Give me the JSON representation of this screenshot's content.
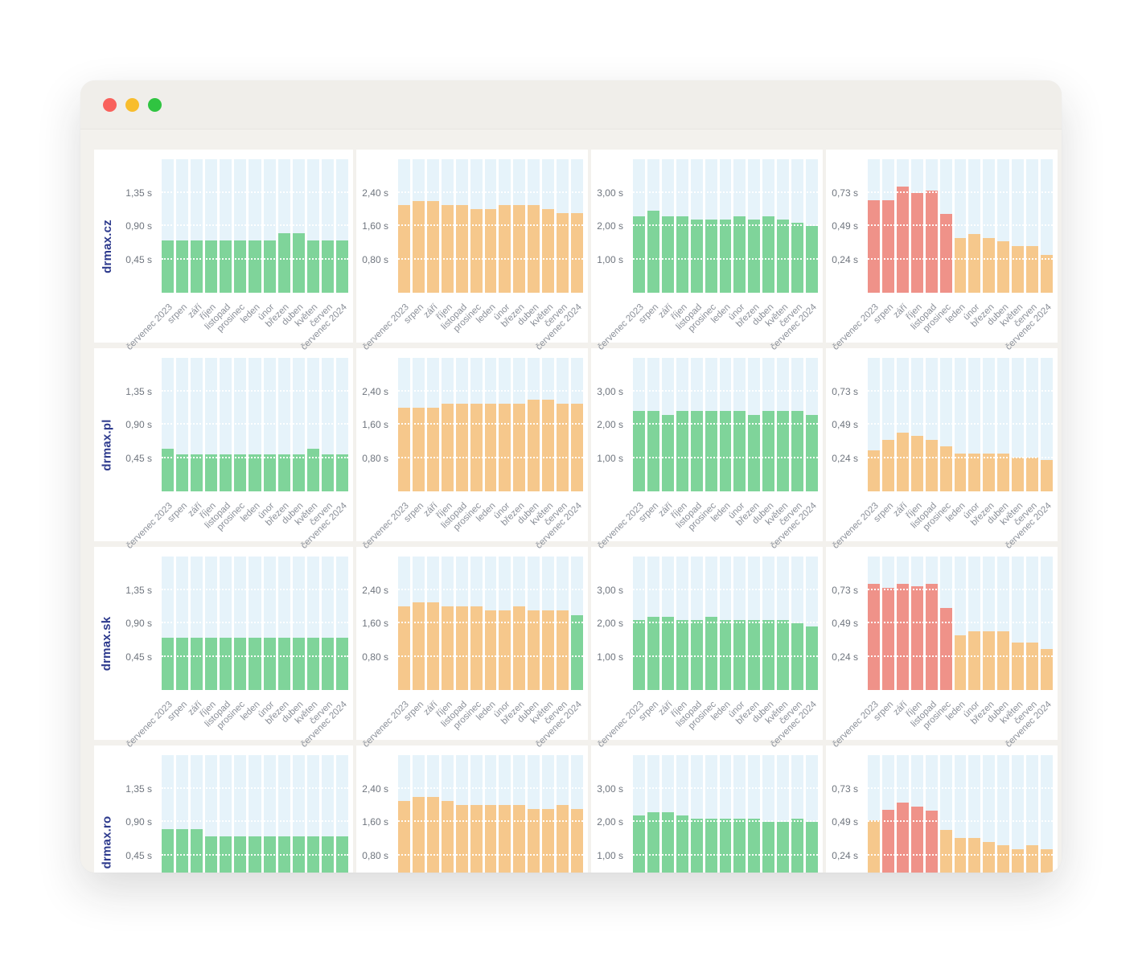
{
  "window": {
    "traffic_lights": [
      {
        "name": "close-button",
        "color": "#f9615c"
      },
      {
        "name": "minimize-button",
        "color": "#f8bd2d"
      },
      {
        "name": "maximize-button",
        "color": "#30c441"
      }
    ]
  },
  "palette": {
    "good": "#7fd49a",
    "warn": "#f6c88c",
    "poor": "#ef9289",
    "track": "#e6f3fa",
    "row_label": "#2d3a8d",
    "tick_label": "#6f757e",
    "x_label": "#8a8f98"
  },
  "sites": [
    "drmax.cz",
    "drmax.pl",
    "drmax.sk",
    "drmax.ro"
  ],
  "months": [
    "červenec 2023",
    "srpen",
    "září",
    "říjen",
    "listopad",
    "prosinec",
    "leden",
    "únor",
    "březen",
    "duben",
    "květen",
    "červen",
    "červenec 2024"
  ],
  "chart_data": [
    {
      "type": "bar",
      "site": "drmax.cz",
      "panel": 1,
      "ylim": [
        0,
        1.8
      ],
      "ticks": [
        {
          "v": 1.35,
          "label": "1,35 s"
        },
        {
          "v": 0.9,
          "label": "0,90 s"
        },
        {
          "v": 0.45,
          "label": "0,45 s"
        }
      ],
      "values": [
        0.7,
        0.7,
        0.7,
        0.7,
        0.7,
        0.7,
        0.7,
        0.7,
        0.8,
        0.8,
        0.7,
        0.7,
        0.7
      ],
      "status": "good"
    },
    {
      "type": "bar",
      "site": "drmax.cz",
      "panel": 2,
      "ylim": [
        0,
        3.2
      ],
      "ticks": [
        {
          "v": 2.4,
          "label": "2,40 s"
        },
        {
          "v": 1.6,
          "label": "1,60 s"
        },
        {
          "v": 0.8,
          "label": "0,80 s"
        }
      ],
      "values": [
        2.1,
        2.2,
        2.2,
        2.1,
        2.1,
        2.0,
        2.0,
        2.1,
        2.1,
        2.1,
        2.0,
        1.9,
        1.9
      ],
      "status": "warn"
    },
    {
      "type": "bar",
      "site": "drmax.cz",
      "panel": 3,
      "ylim": [
        0,
        4.0
      ],
      "ticks": [
        {
          "v": 3.0,
          "label": "3,00 s"
        },
        {
          "v": 2.0,
          "label": "2,00 s"
        },
        {
          "v": 1.0,
          "label": "1,00 s"
        }
      ],
      "values": [
        2.3,
        2.45,
        2.3,
        2.3,
        2.2,
        2.2,
        2.2,
        2.3,
        2.2,
        2.3,
        2.2,
        2.1,
        2.0
      ],
      "status": "good"
    },
    {
      "type": "bar",
      "site": "drmax.cz",
      "panel": 4,
      "ylim": [
        0,
        0.98
      ],
      "ticks": [
        {
          "v": 0.73,
          "label": "0,73 s"
        },
        {
          "v": 0.49,
          "label": "0,49 s"
        },
        {
          "v": 0.24,
          "label": "0,24 s"
        }
      ],
      "values": [
        0.68,
        0.68,
        0.78,
        0.73,
        0.75,
        0.58,
        0.4,
        0.43,
        0.4,
        0.38,
        0.34,
        0.34,
        0.28
      ],
      "statuses": [
        "poor",
        "poor",
        "poor",
        "poor",
        "poor",
        "poor",
        "warn",
        "warn",
        "warn",
        "warn",
        "warn",
        "warn",
        "warn"
      ]
    },
    {
      "type": "bar",
      "site": "drmax.pl",
      "panel": 1,
      "ylim": [
        0,
        1.8
      ],
      "ticks": [
        {
          "v": 1.35,
          "label": "1,35 s"
        },
        {
          "v": 0.9,
          "label": "0,90 s"
        },
        {
          "v": 0.45,
          "label": "0,45 s"
        }
      ],
      "values": [
        0.57,
        0.5,
        0.5,
        0.5,
        0.5,
        0.5,
        0.5,
        0.5,
        0.5,
        0.5,
        0.57,
        0.5,
        0.5
      ],
      "status": "good"
    },
    {
      "type": "bar",
      "site": "drmax.pl",
      "panel": 2,
      "ylim": [
        0,
        3.2
      ],
      "ticks": [
        {
          "v": 2.4,
          "label": "2,40 s"
        },
        {
          "v": 1.6,
          "label": "1,60 s"
        },
        {
          "v": 0.8,
          "label": "0,80 s"
        }
      ],
      "values": [
        2.0,
        2.0,
        2.0,
        2.1,
        2.1,
        2.1,
        2.1,
        2.1,
        2.1,
        2.2,
        2.2,
        2.1,
        2.1
      ],
      "status": "warn"
    },
    {
      "type": "bar",
      "site": "drmax.pl",
      "panel": 3,
      "ylim": [
        0,
        4.0
      ],
      "ticks": [
        {
          "v": 3.0,
          "label": "3,00 s"
        },
        {
          "v": 2.0,
          "label": "2,00 s"
        },
        {
          "v": 1.0,
          "label": "1,00 s"
        }
      ],
      "values": [
        2.4,
        2.4,
        2.3,
        2.4,
        2.4,
        2.4,
        2.4,
        2.4,
        2.3,
        2.4,
        2.4,
        2.4,
        2.3
      ],
      "status": "good"
    },
    {
      "type": "bar",
      "site": "drmax.pl",
      "panel": 4,
      "ylim": [
        0,
        0.98
      ],
      "ticks": [
        {
          "v": 0.73,
          "label": "0,73 s"
        },
        {
          "v": 0.49,
          "label": "0,49 s"
        },
        {
          "v": 0.24,
          "label": "0,24 s"
        }
      ],
      "values": [
        0.3,
        0.38,
        0.43,
        0.41,
        0.38,
        0.33,
        0.28,
        0.28,
        0.28,
        0.28,
        0.25,
        0.25,
        0.23
      ],
      "status": "warn"
    },
    {
      "type": "bar",
      "site": "drmax.sk",
      "panel": 1,
      "ylim": [
        0,
        1.8
      ],
      "ticks": [
        {
          "v": 1.35,
          "label": "1,35 s"
        },
        {
          "v": 0.9,
          "label": "0,90 s"
        },
        {
          "v": 0.45,
          "label": "0,45 s"
        }
      ],
      "values": [
        0.7,
        0.7,
        0.7,
        0.7,
        0.7,
        0.7,
        0.7,
        0.7,
        0.7,
        0.7,
        0.7,
        0.7,
        0.7
      ],
      "status": "good"
    },
    {
      "type": "bar",
      "site": "drmax.sk",
      "panel": 2,
      "ylim": [
        0,
        3.2
      ],
      "ticks": [
        {
          "v": 2.4,
          "label": "2,40 s"
        },
        {
          "v": 1.6,
          "label": "1,60 s"
        },
        {
          "v": 0.8,
          "label": "0,80 s"
        }
      ],
      "values": [
        2.0,
        2.1,
        2.1,
        2.0,
        2.0,
        2.0,
        1.9,
        1.9,
        2.0,
        1.9,
        1.9,
        1.9,
        1.8
      ],
      "statuses": [
        "warn",
        "warn",
        "warn",
        "warn",
        "warn",
        "warn",
        "warn",
        "warn",
        "warn",
        "warn",
        "warn",
        "warn",
        "good"
      ]
    },
    {
      "type": "bar",
      "site": "drmax.sk",
      "panel": 3,
      "ylim": [
        0,
        4.0
      ],
      "ticks": [
        {
          "v": 3.0,
          "label": "3,00 s"
        },
        {
          "v": 2.0,
          "label": "2,00 s"
        },
        {
          "v": 1.0,
          "label": "1,00 s"
        }
      ],
      "values": [
        2.1,
        2.2,
        2.2,
        2.1,
        2.1,
        2.2,
        2.1,
        2.1,
        2.1,
        2.1,
        2.1,
        2.0,
        1.9
      ],
      "status": "good"
    },
    {
      "type": "bar",
      "site": "drmax.sk",
      "panel": 4,
      "ylim": [
        0,
        0.98
      ],
      "ticks": [
        {
          "v": 0.73,
          "label": "0,73 s"
        },
        {
          "v": 0.49,
          "label": "0,49 s"
        },
        {
          "v": 0.24,
          "label": "0,24 s"
        }
      ],
      "values": [
        0.78,
        0.75,
        0.78,
        0.76,
        0.78,
        0.6,
        0.4,
        0.43,
        0.43,
        0.43,
        0.35,
        0.35,
        0.3
      ],
      "statuses": [
        "poor",
        "poor",
        "poor",
        "poor",
        "poor",
        "poor",
        "warn",
        "warn",
        "warn",
        "warn",
        "warn",
        "warn",
        "warn"
      ]
    },
    {
      "type": "bar",
      "site": "drmax.ro",
      "panel": 1,
      "ylim": [
        0,
        1.8
      ],
      "ticks": [
        {
          "v": 1.35,
          "label": "1,35 s"
        },
        {
          "v": 0.9,
          "label": "0,90 s"
        },
        {
          "v": 0.45,
          "label": "0,45 s"
        }
      ],
      "values": [
        0.8,
        0.8,
        0.8,
        0.7,
        0.7,
        0.7,
        0.7,
        0.7,
        0.7,
        0.7,
        0.7,
        0.7,
        0.7
      ],
      "status": "good"
    },
    {
      "type": "bar",
      "site": "drmax.ro",
      "panel": 2,
      "ylim": [
        0,
        3.2
      ],
      "ticks": [
        {
          "v": 2.4,
          "label": "2,40 s"
        },
        {
          "v": 1.6,
          "label": "1,60 s"
        },
        {
          "v": 0.8,
          "label": "0,80 s"
        }
      ],
      "values": [
        2.1,
        2.2,
        2.2,
        2.1,
        2.0,
        2.0,
        2.0,
        2.0,
        2.0,
        1.9,
        1.9,
        2.0,
        1.9
      ],
      "status": "warn"
    },
    {
      "type": "bar",
      "site": "drmax.ro",
      "panel": 3,
      "ylim": [
        0,
        4.0
      ],
      "ticks": [
        {
          "v": 3.0,
          "label": "3,00 s"
        },
        {
          "v": 2.0,
          "label": "2,00 s"
        },
        {
          "v": 1.0,
          "label": "1,00 s"
        }
      ],
      "values": [
        2.2,
        2.3,
        2.3,
        2.2,
        2.1,
        2.1,
        2.1,
        2.1,
        2.1,
        2.0,
        2.0,
        2.1,
        2.0
      ],
      "status": "good"
    },
    {
      "type": "bar",
      "site": "drmax.ro",
      "panel": 4,
      "ylim": [
        0,
        0.98
      ],
      "ticks": [
        {
          "v": 0.73,
          "label": "0,73 s"
        },
        {
          "v": 0.49,
          "label": "0,49 s"
        },
        {
          "v": 0.24,
          "label": "0,24 s"
        }
      ],
      "values": [
        0.5,
        0.58,
        0.63,
        0.6,
        0.57,
        0.43,
        0.37,
        0.37,
        0.34,
        0.32,
        0.29,
        0.32,
        0.29
      ],
      "statuses": [
        "warn",
        "poor",
        "poor",
        "poor",
        "poor",
        "warn",
        "warn",
        "warn",
        "warn",
        "warn",
        "warn",
        "warn",
        "warn"
      ]
    }
  ]
}
